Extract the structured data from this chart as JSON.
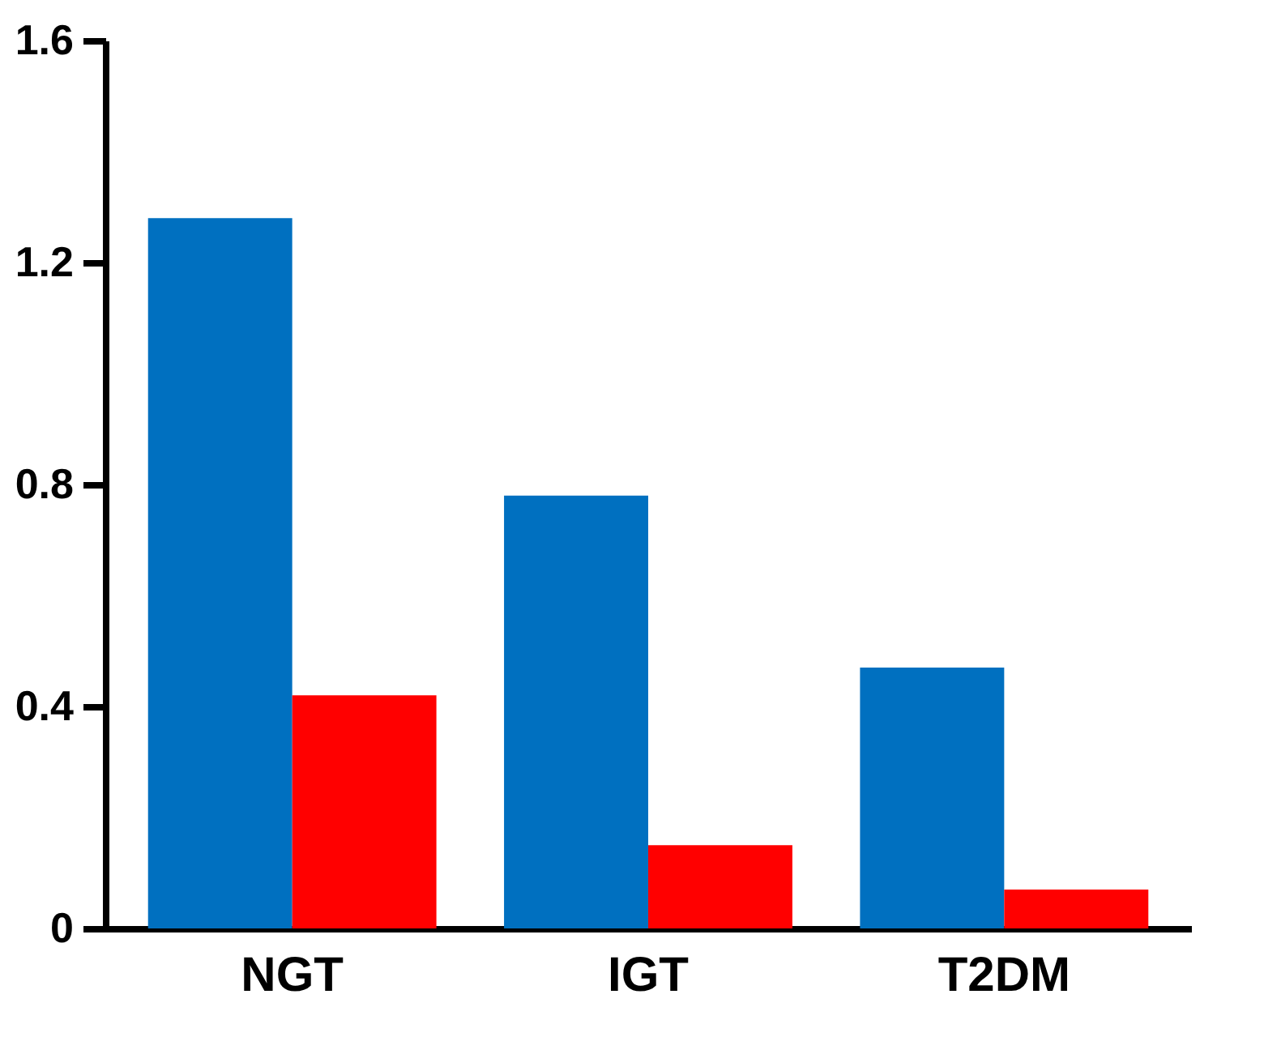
{
  "chart_data": {
    "type": "bar",
    "categories": [
      "NGT",
      "IGT",
      "T2DM"
    ],
    "series": [
      {
        "color": "#0070c0",
        "values": [
          1.28,
          0.78,
          0.47
        ]
      },
      {
        "color": "#ff0000",
        "values": [
          0.42,
          0.15,
          0.07
        ]
      }
    ],
    "ylim": [
      0,
      1.6
    ],
    "yticks": [
      0,
      0.4,
      0.8,
      1.2,
      1.6
    ],
    "grid": false,
    "legend": false
  }
}
